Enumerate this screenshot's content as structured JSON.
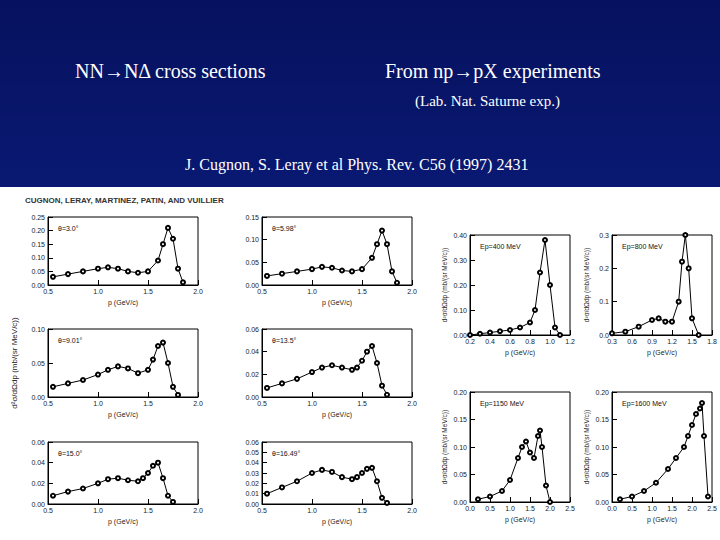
{
  "slide": {
    "title": "NN→NΔ cross sections",
    "subtitle": "From np→pX experiments",
    "note": "(Lab. Nat. Saturne exp.)",
    "reference": "J. Cugnon, S. Leray et al Phys. Rev. C56 (1997) 2431",
    "figure_header": "CUGNON, LERAY, MARTINEZ, PATIN, AND VUILLIER"
  },
  "chart_data": [
    {
      "type": "line",
      "title": "θ=3.0°",
      "xlabel": "p (GeV/c)",
      "x": [
        0.55,
        0.7,
        0.85,
        1.0,
        1.1,
        1.2,
        1.3,
        1.4,
        1.5,
        1.6,
        1.65,
        1.7,
        1.75,
        1.8,
        1.85
      ],
      "series": [
        {
          "marker": "circle",
          "color": "#000000",
          "values": [
            0.03,
            0.04,
            0.05,
            0.06,
            0.065,
            0.06,
            0.05,
            0.045,
            0.05,
            0.09,
            0.15,
            0.21,
            0.17,
            0.06,
            0.01
          ]
        }
      ],
      "xlim": [
        0.5,
        2.0
      ],
      "xticks": [
        0.5,
        {
          "value": 1,
          "label": "1.0"
        },
        1.5,
        {
          "value": 2,
          "label": "2.0"
        }
      ],
      "ylim": [
        0,
        0.25
      ],
      "yticks": [
        {
          "value": 0,
          "label": "0.00"
        },
        0.05,
        {
          "value": 0.1,
          "label": "0.10"
        },
        0.15,
        {
          "value": 0.2,
          "label": "0.20"
        },
        0.25
      ]
    },
    {
      "type": "line",
      "title": "θ=5.98°",
      "xlabel": "p (GeV/c)",
      "x": [
        0.55,
        0.7,
        0.85,
        1.0,
        1.1,
        1.2,
        1.3,
        1.4,
        1.5,
        1.6,
        1.65,
        1.7,
        1.75,
        1.8,
        1.85
      ],
      "series": [
        {
          "marker": "circle",
          "color": "#000000",
          "values": [
            0.02,
            0.025,
            0.03,
            0.035,
            0.04,
            0.038,
            0.032,
            0.03,
            0.035,
            0.06,
            0.09,
            0.12,
            0.09,
            0.03,
            0.005
          ]
        }
      ],
      "xlim": [
        0.5,
        2.0
      ],
      "xticks": [
        0.5,
        {
          "value": 1,
          "label": "1.0"
        },
        1.5,
        {
          "value": 2,
          "label": "2.0"
        }
      ],
      "ylim": [
        0,
        0.15
      ],
      "yticks": [
        {
          "value": 0,
          "label": "0.00"
        },
        0.05,
        {
          "value": 0.1,
          "label": "0.10"
        },
        0.15
      ]
    },
    {
      "type": "line",
      "title": "θ=9.01°",
      "xlabel": "p (GeV/c)",
      "ylabel": "d²σ/dΩdp (mb/(sr MeV/c))",
      "x": [
        0.55,
        0.7,
        0.85,
        1.0,
        1.1,
        1.2,
        1.3,
        1.4,
        1.5,
        1.55,
        1.6,
        1.65,
        1.7,
        1.75,
        1.8
      ],
      "series": [
        {
          "marker": "circle",
          "color": "#000000",
          "values": [
            0.015,
            0.02,
            0.025,
            0.033,
            0.04,
            0.045,
            0.042,
            0.035,
            0.04,
            0.055,
            0.075,
            0.08,
            0.05,
            0.015,
            0.003
          ]
        }
      ],
      "xlim": [
        0.5,
        2.0
      ],
      "xticks": [
        0.5,
        {
          "value": 1,
          "label": "1.0"
        },
        1.5,
        {
          "value": 2,
          "label": "2.0"
        }
      ],
      "ylim": [
        0,
        0.1
      ],
      "yticks": [
        {
          "value": 0,
          "label": "0.00"
        },
        0.05,
        {
          "value": 0.1,
          "label": "0.10"
        }
      ]
    },
    {
      "type": "line",
      "title": "θ=13.5°",
      "xlabel": "p (GeV/c)",
      "x": [
        0.55,
        0.7,
        0.85,
        1.0,
        1.1,
        1.2,
        1.3,
        1.4,
        1.45,
        1.5,
        1.55,
        1.6,
        1.65,
        1.7,
        1.75
      ],
      "series": [
        {
          "marker": "circle",
          "color": "#000000",
          "values": [
            0.008,
            0.012,
            0.016,
            0.022,
            0.026,
            0.028,
            0.026,
            0.024,
            0.026,
            0.032,
            0.04,
            0.045,
            0.03,
            0.01,
            0.002
          ]
        }
      ],
      "xlim": [
        0.5,
        2.0
      ],
      "xticks": [
        0.5,
        {
          "value": 1,
          "label": "1.0"
        },
        1.5,
        {
          "value": 2,
          "label": "2.0"
        }
      ],
      "ylim": [
        0,
        0.06
      ],
      "yticks": [
        {
          "value": 0,
          "label": "0.00"
        },
        0.02,
        0.04,
        0.06
      ]
    },
    {
      "type": "line",
      "title": "θ=15.0°",
      "xlabel": "p (GeV/c)",
      "x": [
        0.55,
        0.7,
        0.85,
        1.0,
        1.1,
        1.2,
        1.3,
        1.4,
        1.45,
        1.5,
        1.55,
        1.6,
        1.65,
        1.7,
        1.75
      ],
      "series": [
        {
          "marker": "circle",
          "color": "#000000",
          "values": [
            0.008,
            0.012,
            0.015,
            0.02,
            0.024,
            0.025,
            0.023,
            0.022,
            0.025,
            0.03,
            0.037,
            0.04,
            0.025,
            0.008,
            0.002
          ]
        }
      ],
      "xlim": [
        0.5,
        2.0
      ],
      "xticks": [
        0.5,
        {
          "value": 1,
          "label": "1.0"
        },
        1.5,
        {
          "value": 2,
          "label": "2.0"
        }
      ],
      "ylim": [
        0,
        0.06
      ],
      "yticks": [
        {
          "value": 0,
          "label": "0.00"
        },
        0.02,
        0.04,
        0.06
      ]
    },
    {
      "type": "line",
      "title": "θ=16.49°",
      "xlabel": "p (GeV/c)",
      "x": [
        0.55,
        0.7,
        0.85,
        1.0,
        1.1,
        1.2,
        1.3,
        1.4,
        1.45,
        1.5,
        1.55,
        1.6,
        1.65,
        1.7,
        1.75
      ],
      "series": [
        {
          "marker": "circle",
          "color": "#000000",
          "values": [
            0.01,
            0.016,
            0.022,
            0.03,
            0.033,
            0.031,
            0.026,
            0.024,
            0.026,
            0.03,
            0.034,
            0.035,
            0.022,
            0.006,
            0.001
          ]
        }
      ],
      "xlim": [
        0.5,
        2.0
      ],
      "xticks": [
        0.5,
        {
          "value": 1,
          "label": "1.0"
        },
        1.5,
        {
          "value": 2,
          "label": "2.0"
        }
      ],
      "ylim": [
        0,
        0.06
      ],
      "yticks": [
        {
          "value": 0,
          "label": "0.00"
        },
        0.01,
        0.02,
        0.03,
        0.04,
        0.05,
        0.06
      ]
    },
    {
      "type": "line",
      "title": "Ep=400 MeV",
      "xlabel": "p (GeV/c)",
      "ylabel": "d²σ/dΩdp (mb/(sr MeV/c))",
      "x": [
        0.2,
        0.3,
        0.4,
        0.5,
        0.6,
        0.7,
        0.8,
        0.85,
        0.9,
        0.95,
        1.0,
        1.05,
        1.1
      ],
      "series": [
        {
          "marker": "circle",
          "color": "#000000",
          "values": [
            0.0,
            0.005,
            0.01,
            0.015,
            0.02,
            0.03,
            0.05,
            0.1,
            0.25,
            0.38,
            0.2,
            0.03,
            0.0
          ]
        }
      ],
      "xlim": [
        0.2,
        1.2
      ],
      "xticks": [
        0.2,
        0.4,
        0.6,
        0.8,
        {
          "value": 1,
          "label": "1.0"
        },
        1.2
      ],
      "ylim": [
        0,
        0.4
      ],
      "yticks": [
        {
          "value": 0,
          "label": "0.00"
        },
        {
          "value": 0.1,
          "label": "0.10"
        },
        {
          "value": 0.2,
          "label": "0.20"
        },
        {
          "value": 0.3,
          "label": "0.30"
        },
        {
          "value": 0.4,
          "label": "0.40"
        }
      ]
    },
    {
      "type": "line",
      "title": "Ep=800 MeV",
      "xlabel": "p (GeV/c)",
      "ylabel": "d²σ/dΩdp (mb/(sr MeV/c))",
      "x": [
        0.3,
        0.5,
        0.7,
        0.9,
        1.0,
        1.1,
        1.2,
        1.3,
        1.35,
        1.4,
        1.45,
        1.5,
        1.6
      ],
      "series": [
        {
          "marker": "circle",
          "color": "#000000",
          "values": [
            0.005,
            0.01,
            0.025,
            0.045,
            0.05,
            0.04,
            0.04,
            0.1,
            0.22,
            0.3,
            0.2,
            0.05,
            0.0
          ]
        }
      ],
      "xlim": [
        0.3,
        1.8
      ],
      "xticks": [
        0.3,
        0.6,
        0.9,
        1.2,
        1.5,
        1.8
      ],
      "ylim": [
        0,
        0.3
      ],
      "yticks": [
        {
          "value": 0,
          "label": "0.0"
        },
        0.1,
        0.2,
        0.3
      ]
    },
    {
      "type": "line",
      "title": "Ep=1150 MeV",
      "xlabel": "p (GeV/c)",
      "ylabel": "d²σ/dΩdp (mb/(sr MeV/c))",
      "x": [
        0.2,
        0.5,
        0.8,
        1.0,
        1.2,
        1.3,
        1.4,
        1.5,
        1.6,
        1.7,
        1.75,
        1.8,
        1.9,
        2.0
      ],
      "series": [
        {
          "marker": "circle",
          "color": "#000000",
          "values": [
            0.005,
            0.01,
            0.02,
            0.04,
            0.08,
            0.1,
            0.11,
            0.09,
            0.08,
            0.12,
            0.13,
            0.1,
            0.03,
            0.0
          ]
        }
      ],
      "xlim": [
        0,
        2.5
      ],
      "xticks": [
        {
          "value": 0,
          "label": "0.0"
        },
        0.5,
        {
          "value": 1,
          "label": "1.0"
        },
        1.5,
        {
          "value": 2,
          "label": "2.0"
        },
        2.5
      ],
      "ylim": [
        0,
        0.2
      ],
      "yticks": [
        {
          "value": 0,
          "label": "0.00"
        },
        0.05,
        {
          "value": 0.1,
          "label": "0.10"
        },
        0.15,
        {
          "value": 0.2,
          "label": "0.20"
        }
      ]
    },
    {
      "type": "line",
      "title": "Ep=1600 MeV",
      "xlabel": "p (GeV/c)",
      "ylabel": "d²σ/dΩdp (mb/(sr MeV/c))",
      "x": [
        0.2,
        0.5,
        0.8,
        1.1,
        1.4,
        1.6,
        1.8,
        1.9,
        2.0,
        2.1,
        2.2,
        2.25,
        2.3,
        2.4
      ],
      "series": [
        {
          "marker": "circle",
          "color": "#000000",
          "values": [
            0.005,
            0.01,
            0.02,
            0.035,
            0.06,
            0.08,
            0.1,
            0.12,
            0.14,
            0.16,
            0.17,
            0.18,
            0.12,
            0.01
          ]
        }
      ],
      "xlim": [
        0,
        2.5
      ],
      "xticks": [
        {
          "value": 0,
          "label": "0.0"
        },
        0.5,
        {
          "value": 1,
          "label": "1.0"
        },
        1.5,
        {
          "value": 2,
          "label": "2.0"
        },
        2.5
      ],
      "ylim": [
        0,
        0.2
      ],
      "yticks": [
        {
          "value": 0,
          "label": "0.00"
        },
        0.05,
        {
          "value": 0.1,
          "label": "0.10"
        },
        0.15,
        {
          "value": 0.2,
          "label": "0.20"
        }
      ]
    }
  ]
}
